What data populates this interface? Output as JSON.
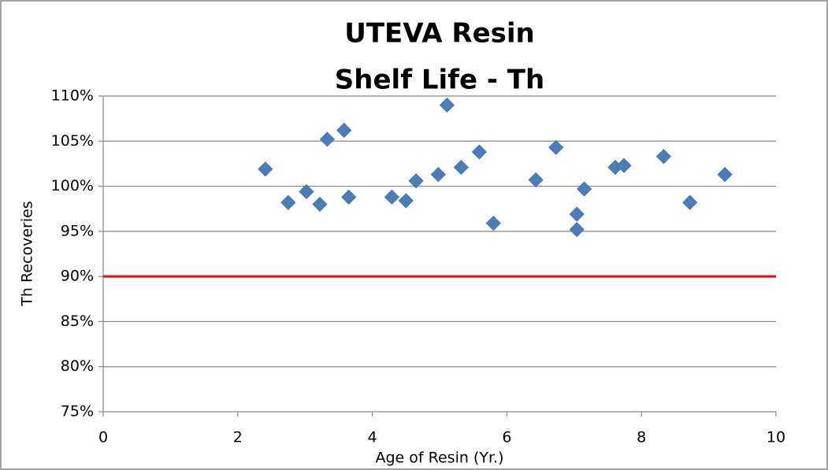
{
  "chart_data": {
    "type": "scatter",
    "title": [
      "UTEVA Resin",
      "Shelf Life - Th"
    ],
    "x_label": "Age of Resin (Yr.)",
    "y_label": "Th Recoveries",
    "series": [
      {
        "name": "Th",
        "color": "#4a7ebb",
        "x": [
          2.41,
          2.75,
          3.02,
          3.22,
          3.33,
          3.58,
          3.65,
          4.29,
          4.5,
          4.65,
          4.98,
          5.11,
          5.32,
          5.59,
          5.8,
          6.43,
          6.73,
          7.04,
          7.04,
          7.15,
          7.61,
          7.74,
          8.33,
          8.72,
          9.24
        ],
        "values": [
          101.9,
          98.2,
          99.4,
          98.0,
          105.2,
          106.2,
          98.8,
          98.8,
          98.4,
          100.6,
          101.3,
          109.0,
          102.1,
          103.8,
          95.9,
          100.7,
          104.3,
          96.9,
          95.2,
          99.7,
          102.1,
          102.3,
          103.3,
          98.2,
          101.3
        ]
      }
    ],
    "hline": {
      "value": 90,
      "color": "#ff0000"
    },
    "xlim": [
      0,
      10
    ],
    "xticks": [
      0,
      2,
      4,
      6,
      8,
      10
    ],
    "ylim": [
      75,
      110
    ],
    "yticks": [
      {
        "value": 75,
        "label": "75%"
      },
      {
        "value": 80,
        "label": "80%"
      },
      {
        "value": 85,
        "label": "85%"
      },
      {
        "value": 90,
        "label": "90%"
      },
      {
        "value": 95,
        "label": "95%"
      },
      {
        "value": 100,
        "label": "100%"
      },
      {
        "value": 105,
        "label": "105%"
      },
      {
        "value": 110,
        "label": "110%"
      }
    ],
    "grid": true
  }
}
